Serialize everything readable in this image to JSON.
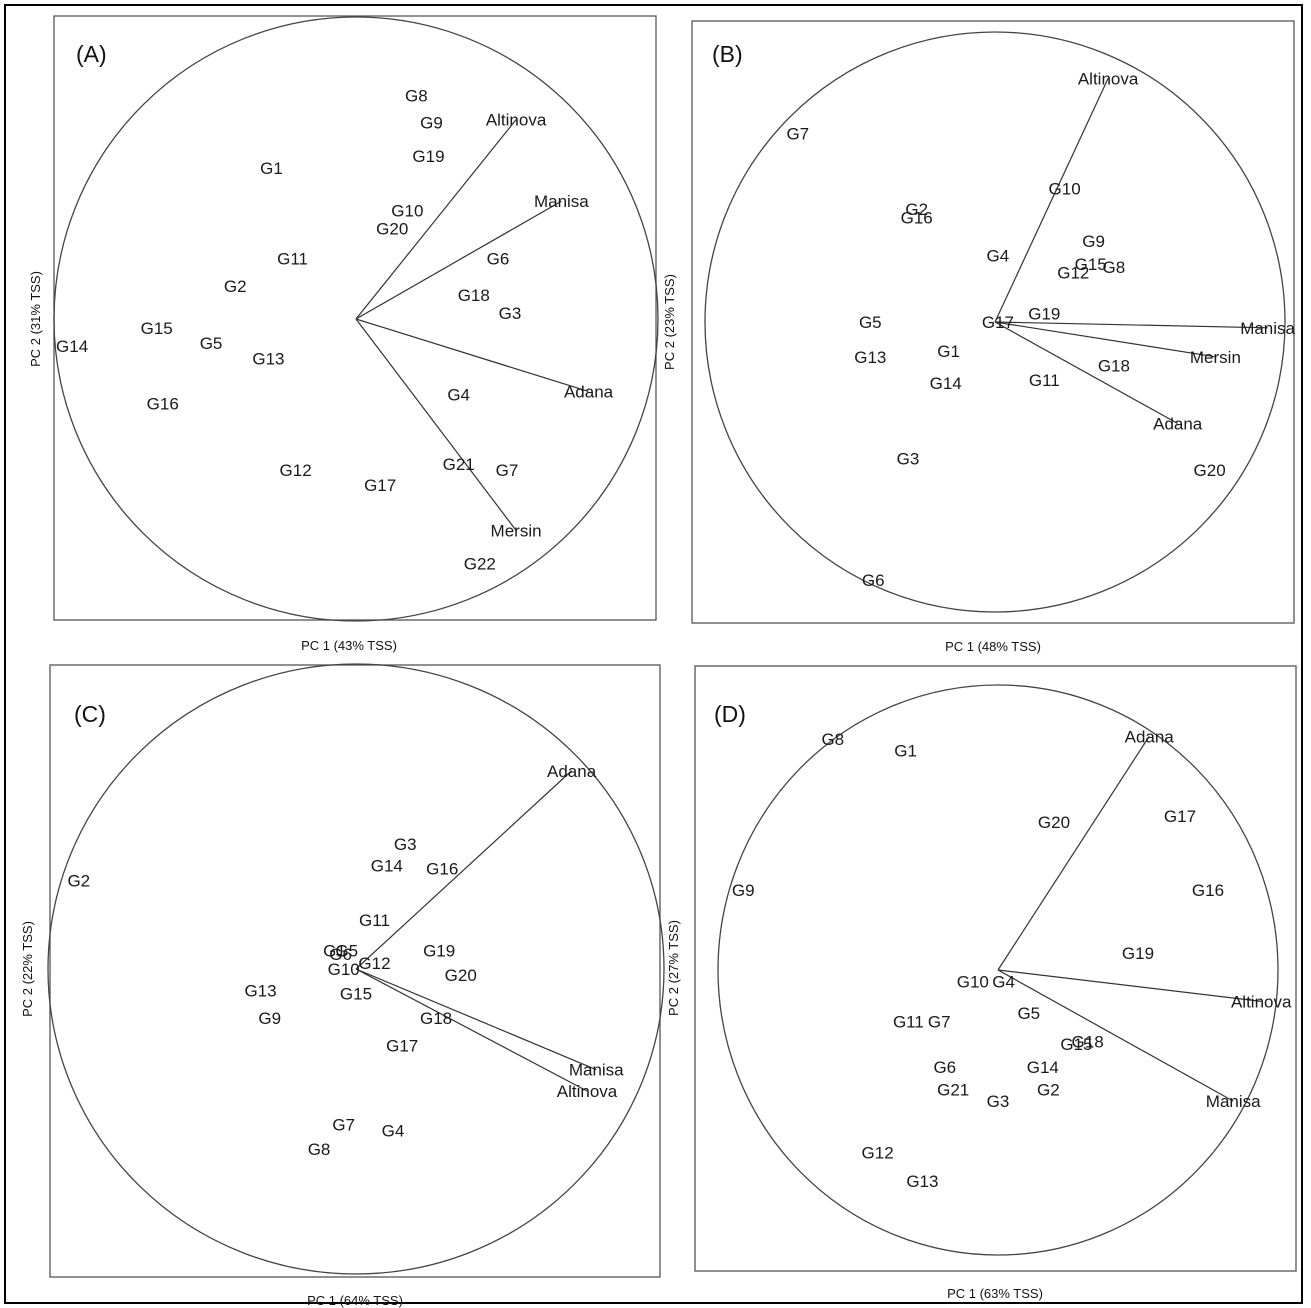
{
  "chart_data": [
    {
      "type": "scatter",
      "subtype": "GGE biplot (polygon-free, vector view)",
      "panel": "(A)",
      "xlabel": "PC 1 (43% TSS)",
      "ylabel": "PC 2 (31% TSS)",
      "genotypes": [
        {
          "name": "G8",
          "x": 0.2,
          "y": 0.74
        },
        {
          "name": "G9",
          "x": 0.25,
          "y": 0.65
        },
        {
          "name": "G19",
          "x": 0.24,
          "y": 0.54
        },
        {
          "name": "G1",
          "x": -0.28,
          "y": 0.5
        },
        {
          "name": "G10",
          "x": 0.17,
          "y": 0.36
        },
        {
          "name": "G20",
          "x": 0.12,
          "y": 0.3
        },
        {
          "name": "G11",
          "x": -0.21,
          "y": 0.2
        },
        {
          "name": "G6",
          "x": 0.47,
          "y": 0.2
        },
        {
          "name": "G2",
          "x": -0.4,
          "y": 0.11
        },
        {
          "name": "G18",
          "x": 0.39,
          "y": 0.08
        },
        {
          "name": "G3",
          "x": 0.51,
          "y": 0.02
        },
        {
          "name": "G15",
          "x": -0.66,
          "y": -0.03
        },
        {
          "name": "G5",
          "x": -0.48,
          "y": -0.08
        },
        {
          "name": "G14",
          "x": -0.94,
          "y": -0.09
        },
        {
          "name": "G13",
          "x": -0.29,
          "y": -0.13
        },
        {
          "name": "G16",
          "x": -0.64,
          "y": -0.28
        },
        {
          "name": "G4",
          "x": 0.34,
          "y": -0.25
        },
        {
          "name": "G12",
          "x": -0.2,
          "y": -0.5
        },
        {
          "name": "G21",
          "x": 0.34,
          "y": -0.48
        },
        {
          "name": "G7",
          "x": 0.5,
          "y": -0.5
        },
        {
          "name": "G17",
          "x": 0.08,
          "y": -0.55
        },
        {
          "name": "G22",
          "x": 0.41,
          "y": -0.81
        }
      ],
      "environments": [
        {
          "name": "Altinova",
          "x": 0.53,
          "y": 0.66
        },
        {
          "name": "Manisa",
          "x": 0.68,
          "y": 0.39
        },
        {
          "name": "Adana",
          "x": 0.77,
          "y": -0.24
        },
        {
          "name": "Mersin",
          "x": 0.53,
          "y": -0.7
        }
      ]
    },
    {
      "type": "scatter",
      "subtype": "GGE biplot (polygon-free, vector view)",
      "panel": "(B)",
      "xlabel": "PC 1 (48% TSS)",
      "ylabel": "PC 2 (23% TSS)",
      "genotypes": [
        {
          "name": "G7",
          "x": -0.68,
          "y": 0.65
        },
        {
          "name": "G10",
          "x": 0.24,
          "y": 0.46
        },
        {
          "name": "G2",
          "x": -0.27,
          "y": 0.39
        },
        {
          "name": "G16",
          "x": -0.27,
          "y": 0.36
        },
        {
          "name": "G9",
          "x": 0.34,
          "y": 0.28
        },
        {
          "name": "G4",
          "x": 0.01,
          "y": 0.23
        },
        {
          "name": "G15",
          "x": 0.33,
          "y": 0.2
        },
        {
          "name": "G8",
          "x": 0.41,
          "y": 0.19
        },
        {
          "name": "G12",
          "x": 0.27,
          "y": 0.17
        },
        {
          "name": "G19",
          "x": 0.17,
          "y": 0.03
        },
        {
          "name": "G5",
          "x": -0.43,
          "y": 0.0
        },
        {
          "name": "G17",
          "x": 0.01,
          "y": 0.0
        },
        {
          "name": "G1",
          "x": -0.16,
          "y": -0.1
        },
        {
          "name": "G13",
          "x": -0.43,
          "y": -0.12
        },
        {
          "name": "G18",
          "x": 0.41,
          "y": -0.15
        },
        {
          "name": "G14",
          "x": -0.17,
          "y": -0.21
        },
        {
          "name": "G11",
          "x": 0.17,
          "y": -0.2
        },
        {
          "name": "G3",
          "x": -0.3,
          "y": -0.47
        },
        {
          "name": "G20",
          "x": 0.74,
          "y": -0.51
        },
        {
          "name": "G6",
          "x": -0.42,
          "y": -0.89
        }
      ],
      "environments": [
        {
          "name": "Altinova",
          "x": 0.39,
          "y": 0.84
        },
        {
          "name": "Manisa",
          "x": 0.94,
          "y": -0.02
        },
        {
          "name": "Mersin",
          "x": 0.76,
          "y": -0.12
        },
        {
          "name": "Adana",
          "x": 0.63,
          "y": -0.35
        }
      ]
    },
    {
      "type": "scatter",
      "subtype": "GGE biplot (polygon-free, vector view)",
      "panel": "(C)",
      "xlabel": "PC 1 (64% TSS)",
      "ylabel": "PC 2 (22% TSS)",
      "genotypes": [
        {
          "name": "G2",
          "x": -0.9,
          "y": 0.29
        },
        {
          "name": "G3",
          "x": 0.16,
          "y": 0.41
        },
        {
          "name": "G14",
          "x": 0.1,
          "y": 0.34
        },
        {
          "name": "G16",
          "x": 0.28,
          "y": 0.33
        },
        {
          "name": "G11",
          "x": 0.06,
          "y": 0.16
        },
        {
          "name": "G19",
          "x": 0.27,
          "y": 0.06
        },
        {
          "name": "G1",
          "x": -0.07,
          "y": 0.06
        },
        {
          "name": "G5",
          "x": -0.03,
          "y": 0.06
        },
        {
          "name": "G6",
          "x": -0.05,
          "y": 0.05
        },
        {
          "name": "G12",
          "x": 0.06,
          "y": 0.02
        },
        {
          "name": "G10",
          "x": -0.04,
          "y": 0.0
        },
        {
          "name": "G20",
          "x": 0.34,
          "y": -0.02
        },
        {
          "name": "G13",
          "x": -0.31,
          "y": -0.07
        },
        {
          "name": "G15",
          "x": 0.0,
          "y": -0.08
        },
        {
          "name": "G9",
          "x": -0.28,
          "y": -0.16
        },
        {
          "name": "G18",
          "x": 0.26,
          "y": -0.16
        },
        {
          "name": "G17",
          "x": 0.15,
          "y": -0.25
        },
        {
          "name": "G7",
          "x": -0.04,
          "y": -0.51
        },
        {
          "name": "G4",
          "x": 0.12,
          "y": -0.53
        },
        {
          "name": "G8",
          "x": -0.12,
          "y": -0.59
        }
      ],
      "environments": [
        {
          "name": "Adana",
          "x": 0.7,
          "y": 0.65
        },
        {
          "name": "Manisa",
          "x": 0.78,
          "y": -0.33
        },
        {
          "name": "Altinova",
          "x": 0.75,
          "y": -0.4
        }
      ]
    },
    {
      "type": "scatter",
      "subtype": "GGE biplot (polygon-free, vector view)",
      "panel": "(D)",
      "xlabel": "PC 1 (63% TSS)",
      "ylabel": "PC 2 (27% TSS)",
      "genotypes": [
        {
          "name": "G8",
          "x": -0.59,
          "y": 0.81
        },
        {
          "name": "G1",
          "x": -0.33,
          "y": 0.77
        },
        {
          "name": "G17",
          "x": 0.65,
          "y": 0.54
        },
        {
          "name": "G20",
          "x": 0.2,
          "y": 0.52
        },
        {
          "name": "G9",
          "x": -0.91,
          "y": 0.28
        },
        {
          "name": "G16",
          "x": 0.75,
          "y": 0.28
        },
        {
          "name": "G19",
          "x": 0.5,
          "y": 0.06
        },
        {
          "name": "G10",
          "x": -0.09,
          "y": -0.04
        },
        {
          "name": "G4",
          "x": 0.02,
          "y": -0.04
        },
        {
          "name": "G5",
          "x": 0.11,
          "y": -0.15
        },
        {
          "name": "G11",
          "x": -0.32,
          "y": -0.18
        },
        {
          "name": "G7",
          "x": -0.21,
          "y": -0.18
        },
        {
          "name": "G18",
          "x": 0.32,
          "y": -0.25
        },
        {
          "name": "G15",
          "x": 0.28,
          "y": -0.26
        },
        {
          "name": "G14",
          "x": 0.16,
          "y": -0.34
        },
        {
          "name": "G6",
          "x": -0.19,
          "y": -0.34
        },
        {
          "name": "G21",
          "x": -0.16,
          "y": -0.42
        },
        {
          "name": "G2",
          "x": 0.18,
          "y": -0.42
        },
        {
          "name": "G3",
          "x": 0.0,
          "y": -0.46
        },
        {
          "name": "G12",
          "x": -0.43,
          "y": -0.64
        },
        {
          "name": "G13",
          "x": -0.27,
          "y": -0.74
        }
      ],
      "environments": [
        {
          "name": "Adana",
          "x": 0.54,
          "y": 0.82
        },
        {
          "name": "Altinova",
          "x": 0.94,
          "y": -0.11
        },
        {
          "name": "Manisa",
          "x": 0.84,
          "y": -0.46
        }
      ]
    }
  ]
}
